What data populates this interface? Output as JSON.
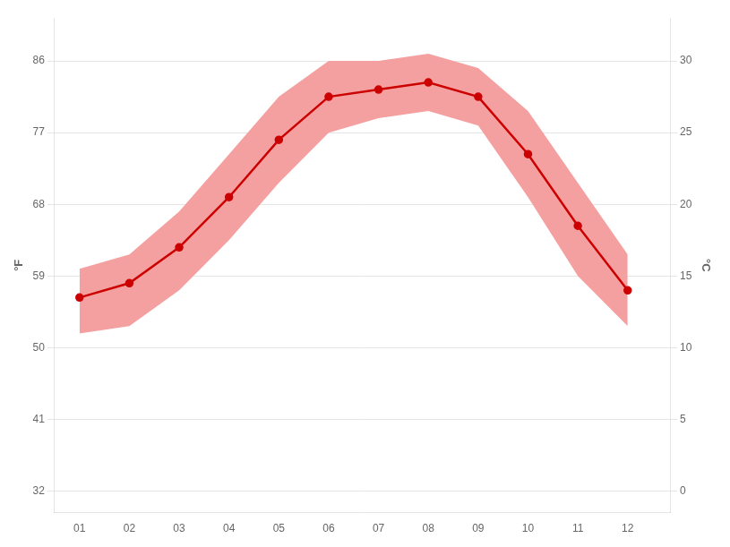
{
  "chart_data": {
    "type": "line",
    "x": [
      1,
      2,
      3,
      4,
      5,
      6,
      7,
      8,
      9,
      10,
      11,
      12
    ],
    "xlim": [
      0.5,
      12.85
    ],
    "xticks": [
      {
        "value": 1,
        "label": "01"
      },
      {
        "value": 2,
        "label": "02"
      },
      {
        "value": 3,
        "label": "03"
      },
      {
        "value": 4,
        "label": "04"
      },
      {
        "value": 5,
        "label": "05"
      },
      {
        "value": 6,
        "label": "06"
      },
      {
        "value": 7,
        "label": "07"
      },
      {
        "value": 8,
        "label": "08"
      },
      {
        "value": 9,
        "label": "09"
      },
      {
        "value": 10,
        "label": "10"
      },
      {
        "value": 11,
        "label": "11"
      },
      {
        "value": 12,
        "label": "12"
      }
    ],
    "ylabel": "°C",
    "ylim": [
      -1.5,
      33
    ],
    "yticks": [
      0,
      5,
      10,
      15,
      20,
      25,
      30
    ],
    "y2label": "°F",
    "y2lim": [
      29.3,
      91.4
    ],
    "y2ticks": [
      32,
      41,
      50,
      59,
      68,
      77,
      86
    ],
    "grid": "y",
    "series": [
      {
        "type": "area",
        "color": "#f5a0a0",
        "low": [
          11.0,
          11.5,
          14.0,
          17.5,
          21.5,
          25.0,
          26.0,
          26.5,
          25.5,
          20.5,
          15.0,
          11.5
        ],
        "high": [
          15.5,
          16.5,
          19.5,
          23.5,
          27.5,
          30.0,
          30.0,
          30.5,
          29.5,
          26.5,
          21.5,
          16.5
        ]
      },
      {
        "type": "line",
        "color": "#cc0000",
        "marker": "o",
        "values": [
          13.5,
          14.5,
          17.0,
          20.5,
          24.5,
          27.5,
          28.0,
          28.5,
          27.5,
          23.5,
          18.5,
          14.0
        ]
      }
    ]
  }
}
